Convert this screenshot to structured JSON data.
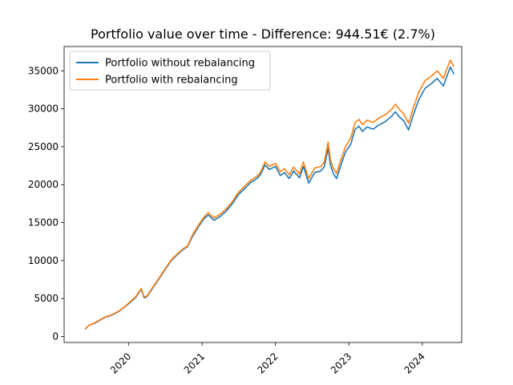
{
  "chart_data": {
    "type": "line",
    "title": "Portfolio value over time - Difference: 944.51€ (2.7%)",
    "xlabel": "",
    "ylabel": "",
    "x_ticks": [
      "2020",
      "2021",
      "2022",
      "2023",
      "2024"
    ],
    "y_ticks": [
      0,
      5000,
      10000,
      15000,
      20000,
      25000,
      30000,
      35000
    ],
    "xlim": [
      "2019-02-15",
      "2024-07-15"
    ],
    "ylim": [
      -800,
      38200
    ],
    "grid": false,
    "legend_position": "top-left",
    "series": [
      {
        "name": "Portfolio without rebalancing",
        "color": "#1f77b4",
        "points": [
          [
            "2019-06-01",
            1000
          ],
          [
            "2019-06-20",
            1500
          ],
          [
            "2019-07-15",
            1700
          ],
          [
            "2019-08-10",
            2100
          ],
          [
            "2019-09-05",
            2500
          ],
          [
            "2019-10-01",
            2700
          ],
          [
            "2019-10-25",
            3000
          ],
          [
            "2019-11-20",
            3400
          ],
          [
            "2019-12-15",
            3900
          ],
          [
            "2020-01-10",
            4500
          ],
          [
            "2020-02-05",
            5100
          ],
          [
            "2020-02-20",
            5700
          ],
          [
            "2020-03-05",
            6200
          ],
          [
            "2020-03-18",
            5100
          ],
          [
            "2020-04-01",
            5200
          ],
          [
            "2020-05-01",
            6400
          ],
          [
            "2020-06-01",
            7600
          ],
          [
            "2020-07-01",
            8800
          ],
          [
            "2020-08-01",
            10000
          ],
          [
            "2020-09-01",
            10800
          ],
          [
            "2020-10-01",
            11500
          ],
          [
            "2020-10-20",
            11800
          ],
          [
            "2020-11-15",
            13200
          ],
          [
            "2020-12-15",
            14500
          ],
          [
            "2021-01-10",
            15500
          ],
          [
            "2021-02-01",
            16000
          ],
          [
            "2021-03-01",
            15300
          ],
          [
            "2021-04-01",
            15800
          ],
          [
            "2021-05-01",
            16500
          ],
          [
            "2021-06-01",
            17500
          ],
          [
            "2021-07-01",
            18700
          ],
          [
            "2021-08-01",
            19500
          ],
          [
            "2021-09-01",
            20300
          ],
          [
            "2021-10-01",
            20800
          ],
          [
            "2021-10-20",
            21400
          ],
          [
            "2021-11-10",
            22600
          ],
          [
            "2021-12-01",
            22000
          ],
          [
            "2022-01-01",
            22400
          ],
          [
            "2022-01-25",
            21200
          ],
          [
            "2022-02-15",
            21600
          ],
          [
            "2022-03-10",
            20800
          ],
          [
            "2022-04-01",
            21800
          ],
          [
            "2022-05-01",
            20900
          ],
          [
            "2022-05-20",
            22400
          ],
          [
            "2022-06-15",
            20200
          ],
          [
            "2022-07-15",
            21600
          ],
          [
            "2022-08-15",
            21800
          ],
          [
            "2022-09-01",
            22400
          ],
          [
            "2022-09-20",
            24800
          ],
          [
            "2022-10-01",
            22600
          ],
          [
            "2022-10-15",
            21500
          ],
          [
            "2022-11-01",
            20800
          ],
          [
            "2022-11-20",
            22400
          ],
          [
            "2022-12-15",
            24300
          ],
          [
            "2023-01-10",
            25300
          ],
          [
            "2023-02-01",
            27300
          ],
          [
            "2023-02-20",
            27700
          ],
          [
            "2023-03-10",
            27000
          ],
          [
            "2023-04-01",
            27600
          ],
          [
            "2023-05-01",
            27300
          ],
          [
            "2023-06-01",
            27900
          ],
          [
            "2023-07-01",
            28300
          ],
          [
            "2023-08-01",
            29000
          ],
          [
            "2023-08-20",
            29600
          ],
          [
            "2023-09-10",
            28900
          ],
          [
            "2023-10-01",
            28400
          ],
          [
            "2023-10-25",
            27200
          ],
          [
            "2023-11-15",
            29000
          ],
          [
            "2023-12-15",
            31200
          ],
          [
            "2024-01-15",
            32700
          ],
          [
            "2024-02-15",
            33300
          ],
          [
            "2024-03-15",
            34000
          ],
          [
            "2024-04-15",
            33000
          ],
          [
            "2024-05-01",
            34200
          ],
          [
            "2024-05-20",
            35500
          ],
          [
            "2024-06-05",
            34600
          ]
        ]
      },
      {
        "name": "Portfolio with rebalancing",
        "color": "#ff7f0e",
        "points": [
          [
            "2019-06-01",
            1000
          ],
          [
            "2019-06-20",
            1500
          ],
          [
            "2019-07-15",
            1750
          ],
          [
            "2019-08-10",
            2150
          ],
          [
            "2019-09-05",
            2550
          ],
          [
            "2019-10-01",
            2750
          ],
          [
            "2019-10-25",
            3050
          ],
          [
            "2019-11-20",
            3450
          ],
          [
            "2019-12-15",
            3950
          ],
          [
            "2020-01-10",
            4600
          ],
          [
            "2020-02-05",
            5200
          ],
          [
            "2020-02-20",
            5800
          ],
          [
            "2020-03-05",
            6300
          ],
          [
            "2020-03-18",
            5200
          ],
          [
            "2020-04-01",
            5300
          ],
          [
            "2020-05-01",
            6500
          ],
          [
            "2020-06-01",
            7700
          ],
          [
            "2020-07-01",
            8900
          ],
          [
            "2020-08-01",
            10100
          ],
          [
            "2020-09-01",
            10900
          ],
          [
            "2020-10-01",
            11600
          ],
          [
            "2020-10-20",
            11900
          ],
          [
            "2020-11-15",
            13400
          ],
          [
            "2020-12-15",
            14700
          ],
          [
            "2021-01-10",
            15700
          ],
          [
            "2021-02-01",
            16300
          ],
          [
            "2021-03-01",
            15600
          ],
          [
            "2021-04-01",
            16100
          ],
          [
            "2021-05-01",
            16800
          ],
          [
            "2021-06-01",
            17800
          ],
          [
            "2021-07-01",
            19000
          ],
          [
            "2021-08-01",
            19800
          ],
          [
            "2021-09-01",
            20600
          ],
          [
            "2021-10-01",
            21100
          ],
          [
            "2021-10-20",
            21700
          ],
          [
            "2021-11-10",
            23000
          ],
          [
            "2021-12-01",
            22400
          ],
          [
            "2022-01-01",
            22800
          ],
          [
            "2022-01-25",
            21700
          ],
          [
            "2022-02-15",
            22100
          ],
          [
            "2022-03-10",
            21300
          ],
          [
            "2022-04-01",
            22300
          ],
          [
            "2022-05-01",
            21400
          ],
          [
            "2022-05-20",
            23000
          ],
          [
            "2022-06-15",
            20800
          ],
          [
            "2022-07-15",
            22200
          ],
          [
            "2022-08-15",
            22400
          ],
          [
            "2022-09-01",
            23000
          ],
          [
            "2022-09-20",
            25600
          ],
          [
            "2022-10-01",
            23300
          ],
          [
            "2022-10-15",
            22200
          ],
          [
            "2022-11-01",
            21500
          ],
          [
            "2022-11-20",
            23100
          ],
          [
            "2022-12-15",
            25000
          ],
          [
            "2023-01-10",
            26100
          ],
          [
            "2023-02-01",
            28200
          ],
          [
            "2023-02-20",
            28600
          ],
          [
            "2023-03-10",
            27900
          ],
          [
            "2023-04-01",
            28500
          ],
          [
            "2023-05-01",
            28200
          ],
          [
            "2023-06-01",
            28800
          ],
          [
            "2023-07-01",
            29200
          ],
          [
            "2023-08-01",
            29900
          ],
          [
            "2023-08-20",
            30600
          ],
          [
            "2023-09-10",
            29900
          ],
          [
            "2023-10-01",
            29300
          ],
          [
            "2023-10-25",
            28100
          ],
          [
            "2023-11-15",
            29900
          ],
          [
            "2023-12-15",
            32200
          ],
          [
            "2024-01-15",
            33700
          ],
          [
            "2024-02-15",
            34300
          ],
          [
            "2024-03-15",
            35000
          ],
          [
            "2024-04-15",
            34000
          ],
          [
            "2024-05-01",
            35200
          ],
          [
            "2024-05-20",
            36400
          ],
          [
            "2024-06-05",
            35600
          ]
        ]
      }
    ]
  }
}
